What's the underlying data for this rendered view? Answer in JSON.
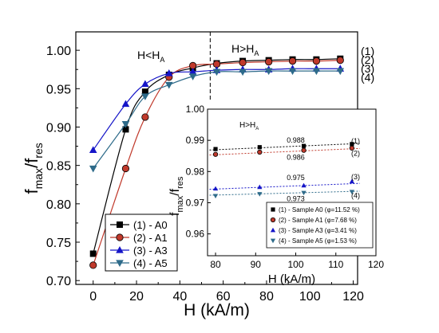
{
  "chart_data": [
    {
      "type": "line",
      "xlabel": "H (kA/m)",
      "ylabel_main": "f",
      "ylabel_sub1": "max",
      "ylabel_sep": "/f",
      "ylabel_sub2": "res",
      "xlim": [
        -8,
        122
      ],
      "ylim": [
        0.695,
        1.024
      ],
      "xticks": [
        "0",
        "20",
        "40",
        "60",
        "80",
        "100",
        "120"
      ],
      "yticks": [
        "0.70",
        "0.75",
        "0.80",
        "0.85",
        "0.90",
        "0.95",
        "1.00"
      ],
      "annotations": {
        "left_region_main": "H<H",
        "left_region_sub": "A",
        "right_region_main": "H>H",
        "right_region_sub": "A",
        "divider_x": 54
      },
      "legend": {
        "placement": "bottom-left",
        "entries": [
          "(1) - A0",
          "(2) - A1",
          "(3) - A3",
          "(4) - A5"
        ]
      },
      "series_end_labels": [
        "(1)",
        "(2)",
        "(3)",
        "(4)"
      ],
      "series": [
        {
          "name": "(1) - A0",
          "color": "#000000",
          "marker": "square",
          "x": [
            0,
            15,
            24,
            35,
            46,
            57,
            69,
            81,
            92,
            103,
            114
          ],
          "y": [
            0.735,
            0.897,
            0.946,
            0.968,
            0.977,
            0.983,
            0.986,
            0.987,
            0.988,
            0.988,
            0.989
          ]
        },
        {
          "name": "(2) - A1",
          "color": "#c0392b",
          "marker": "circle",
          "x": [
            0,
            15,
            24,
            35,
            46,
            57,
            69,
            81,
            92,
            103,
            114
          ],
          "y": [
            0.72,
            0.846,
            0.913,
            0.965,
            0.98,
            0.982,
            0.984,
            0.985,
            0.986,
            0.986,
            0.987
          ]
        },
        {
          "name": "(3) - A3",
          "color": "#1515c8",
          "marker": "triangle-up",
          "x": [
            0,
            15,
            24,
            35,
            46,
            57,
            69,
            81,
            92,
            103,
            114
          ],
          "y": [
            0.87,
            0.93,
            0.956,
            0.97,
            0.972,
            0.974,
            0.975,
            0.975,
            0.976,
            0.976,
            0.976
          ]
        },
        {
          "name": "(4) - A5",
          "color": "#2e6b8a",
          "marker": "triangle-down",
          "x": [
            0,
            15,
            24,
            35,
            46,
            57,
            69,
            81,
            92,
            103,
            114
          ],
          "y": [
            0.846,
            0.904,
            0.94,
            0.955,
            0.966,
            0.972,
            0.972,
            0.973,
            0.973,
            0.973,
            0.973
          ]
        }
      ]
    },
    {
      "type": "scatter",
      "xlabel": "H (kA/m)",
      "ylabel_main": "f",
      "ylabel_sub1": "max",
      "ylabel_sep": "/f",
      "ylabel_sub2": "res",
      "xlim": [
        78,
        120
      ],
      "ylim": [
        0.953,
        1.0
      ],
      "xticks": [
        "80",
        "90",
        "100",
        "110",
        "120"
      ],
      "yticks": [
        "0.96",
        "0.97",
        "0.98",
        "0.99",
        "1.00"
      ],
      "title_main": "H>H",
      "title_sub": "A",
      "value_labels": [
        {
          "text": "0.988",
          "x": 100,
          "y": 0.9893
        },
        {
          "text": "0.986",
          "x": 100,
          "y": 0.9838
        },
        {
          "text": "0.975",
          "x": 100,
          "y": 0.9773
        },
        {
          "text": "0.973",
          "x": 100,
          "y": 0.9705
        }
      ],
      "legend": {
        "placement": "bottom-right",
        "entries": [
          "(1) - Sample A0 (φ=11.52 %)",
          "(2) - Sample A1 (φ=7.68 %)",
          "(3) - Sample A3 (φ=3.41 %)",
          "(4) - Sample A5 (φ=1.53 %)"
        ]
      },
      "series_end_labels": [
        "(1)",
        "(2)",
        "(3)",
        "(4)"
      ],
      "series": [
        {
          "name": "(1) - Sample A0 (φ=11.52 %)",
          "color": "#000000",
          "marker": "square",
          "x": [
            80,
            91,
            102,
            114
          ],
          "y": [
            0.9872,
            0.9878,
            0.9882,
            0.9888
          ],
          "fit": [
            0.9869,
            0.989
          ]
        },
        {
          "name": "(2) - Sample A1 (φ=7.68 %)",
          "color": "#c0392b",
          "marker": "circle",
          "x": [
            80,
            91,
            102,
            114
          ],
          "y": [
            0.9855,
            0.9862,
            0.9868,
            0.9875
          ],
          "fit": [
            0.9853,
            0.9874
          ]
        },
        {
          "name": "(3) - Sample A3 (φ=3.41 %)",
          "color": "#1515c8",
          "marker": "triangle-up",
          "x": [
            80,
            91,
            102,
            114
          ],
          "y": [
            0.9745,
            0.975,
            0.9755,
            0.9768
          ],
          "fit": [
            0.9743,
            0.9762
          ]
        },
        {
          "name": "(4) - Sample A5 (φ=1.53 %)",
          "color": "#2e6b8a",
          "marker": "triangle-down",
          "x": [
            80,
            91,
            102,
            114
          ],
          "y": [
            0.9722,
            0.9728,
            0.9732,
            0.9735
          ],
          "fit": [
            0.9724,
            0.9737
          ]
        }
      ]
    }
  ]
}
